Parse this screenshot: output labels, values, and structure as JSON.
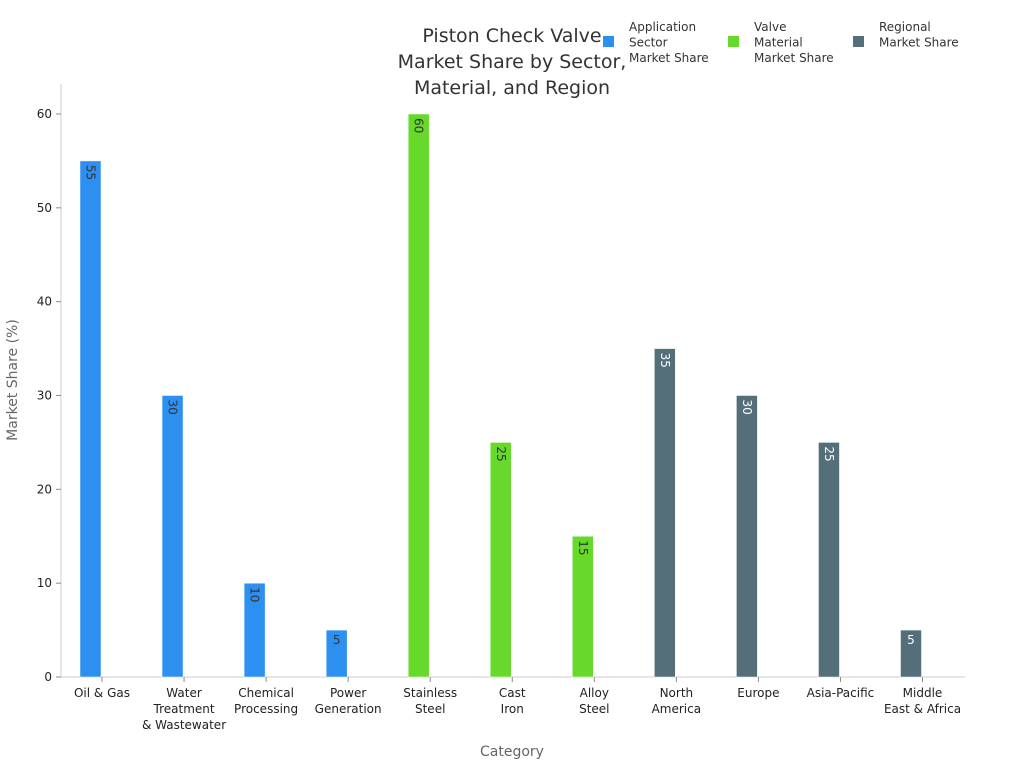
{
  "chart_data": {
    "type": "bar",
    "title": [
      "Piston Check Valve",
      "Market Share by Sector,",
      "Material, and Region"
    ],
    "xlabel": "Category",
    "ylabel": "Market Share (%)",
    "ylim": [
      0,
      63
    ],
    "yticks": [
      0,
      10,
      20,
      30,
      40,
      50,
      60
    ],
    "grid": false,
    "legend_position": "top-right",
    "categories": [
      [
        "Oil & Gas"
      ],
      [
        "Water",
        "Treatment",
        "& Wastewater"
      ],
      [
        "Chemical",
        "Processing"
      ],
      [
        "Power",
        "Generation"
      ],
      [
        "Stainless",
        "Steel"
      ],
      [
        "Cast",
        "Iron"
      ],
      [
        "Alloy",
        "Steel"
      ],
      [
        "North",
        "America"
      ],
      [
        "Europe"
      ],
      [
        "Asia-Pacific"
      ],
      [
        "Middle",
        "East & Africa"
      ]
    ],
    "series": [
      {
        "name": [
          "Application",
          "Sector",
          "Market Share"
        ],
        "color": "#2d8ff0",
        "label_color": "#333333",
        "values": [
          55,
          30,
          10,
          5,
          null,
          null,
          null,
          null,
          null,
          null,
          null
        ]
      },
      {
        "name": [
          "Valve",
          "Material",
          "Market Share"
        ],
        "color": "#66d92a",
        "label_color": "#333333",
        "values": [
          null,
          null,
          null,
          null,
          60,
          25,
          15,
          null,
          null,
          null,
          null
        ]
      },
      {
        "name": [
          "Regional",
          "Market Share"
        ],
        "color": "#546e7a",
        "label_color": "#ffffff",
        "values": [
          null,
          null,
          null,
          null,
          null,
          null,
          null,
          35,
          30,
          25,
          5
        ]
      }
    ]
  }
}
